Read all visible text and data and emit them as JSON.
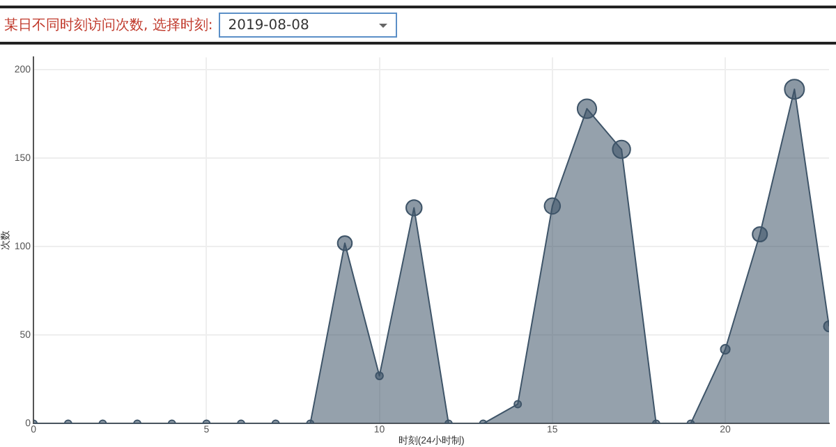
{
  "chart_data": {
    "type": "area",
    "title": "某日不同时刻访问次数, 选择时刻:",
    "subtitle": "2019-08-08",
    "xlabel": "时刻(24小时制)",
    "ylabel": "次数",
    "x": [
      0,
      1,
      2,
      3,
      4,
      5,
      6,
      7,
      8,
      9,
      10,
      11,
      12,
      13,
      14,
      15,
      16,
      17,
      18,
      19,
      20,
      21,
      22,
      23
    ],
    "series": [
      {
        "color": "#3e5468",
        "values": [
          0,
          0,
          0,
          0,
          0,
          0,
          0,
          0,
          0,
          102,
          27,
          122,
          0,
          0,
          11,
          123,
          178,
          155,
          0,
          0,
          42,
          107,
          189,
          55
        ]
      }
    ],
    "xlim": [
      0,
      23
    ],
    "ylim": [
      0,
      207
    ],
    "xticks": [
      0,
      5,
      10,
      15,
      20
    ],
    "yticks": [
      0,
      50,
      100,
      150,
      200
    ],
    "grid": true,
    "legend": false,
    "marker": "circle"
  }
}
